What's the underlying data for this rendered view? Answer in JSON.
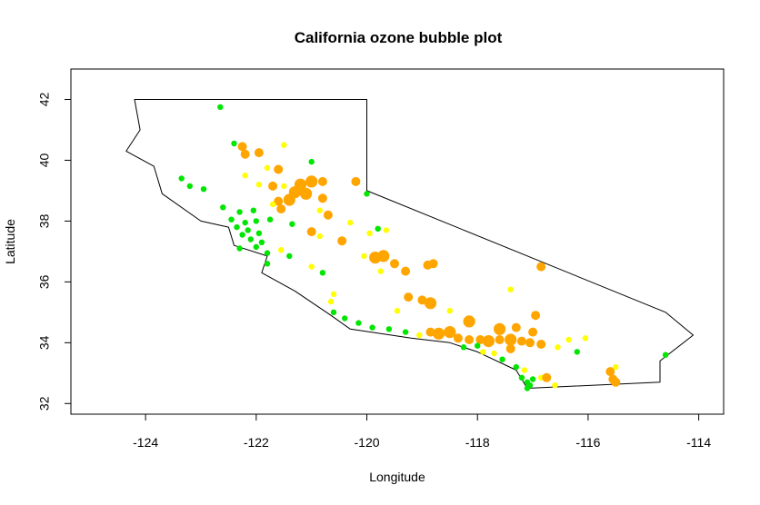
{
  "chart_data": {
    "type": "scatter",
    "title": "California ozone bubble plot",
    "xlabel": "Longitude",
    "ylabel": "Latitude",
    "xlim": [
      -125.35,
      -113.55
    ],
    "ylim": [
      31.65,
      43.0
    ],
    "xticks": [
      -124,
      -122,
      -120,
      -118,
      -116,
      -114
    ],
    "yticks": [
      32,
      34,
      36,
      38,
      40,
      42
    ],
    "grid": false,
    "legend": "none",
    "colors": {
      "low": "#00e600",
      "mid": "#ffff00",
      "high": "#ffa500",
      "map_line": "#000000"
    },
    "state_outline": [
      [
        -124.2,
        42.0
      ],
      [
        -120.0,
        42.0
      ],
      [
        -120.0,
        39.0
      ],
      [
        -114.6,
        35.0
      ],
      [
        -114.1,
        34.25
      ],
      [
        -114.7,
        33.4
      ],
      [
        -114.7,
        32.7
      ],
      [
        -117.1,
        32.5
      ],
      [
        -117.3,
        33.1
      ],
      [
        -118.0,
        33.7
      ],
      [
        -118.5,
        34.0
      ],
      [
        -119.2,
        34.15
      ],
      [
        -120.3,
        34.45
      ],
      [
        -120.65,
        34.9
      ],
      [
        -121.3,
        35.7
      ],
      [
        -121.9,
        36.3
      ],
      [
        -121.8,
        36.85
      ],
      [
        -122.4,
        37.2
      ],
      [
        -122.5,
        37.8
      ],
      [
        -123.0,
        38.0
      ],
      [
        -123.7,
        38.9
      ],
      [
        -123.85,
        39.8
      ],
      [
        -124.35,
        40.3
      ],
      [
        -124.1,
        41.0
      ],
      [
        -124.2,
        42.0
      ]
    ],
    "points": [
      {
        "lon": -122.65,
        "lat": 41.75,
        "level": "low",
        "size": 1
      },
      {
        "lon": -122.4,
        "lat": 40.55,
        "level": "low",
        "size": 1
      },
      {
        "lon": -122.25,
        "lat": 40.45,
        "level": "high",
        "size": 2
      },
      {
        "lon": -122.2,
        "lat": 40.2,
        "level": "high",
        "size": 2
      },
      {
        "lon": -121.95,
        "lat": 40.25,
        "level": "high",
        "size": 2
      },
      {
        "lon": -121.5,
        "lat": 40.5,
        "level": "mid",
        "size": 1
      },
      {
        "lon": -121.0,
        "lat": 39.95,
        "level": "low",
        "size": 1
      },
      {
        "lon": -122.2,
        "lat": 39.5,
        "level": "mid",
        "size": 1
      },
      {
        "lon": -121.8,
        "lat": 39.75,
        "level": "mid",
        "size": 1
      },
      {
        "lon": -121.6,
        "lat": 39.7,
        "level": "high",
        "size": 2
      },
      {
        "lon": -121.95,
        "lat": 39.2,
        "level": "mid",
        "size": 1
      },
      {
        "lon": -121.7,
        "lat": 39.15,
        "level": "high",
        "size": 2
      },
      {
        "lon": -121.5,
        "lat": 39.15,
        "level": "mid",
        "size": 1
      },
      {
        "lon": -123.35,
        "lat": 39.4,
        "level": "low",
        "size": 1
      },
      {
        "lon": -123.2,
        "lat": 39.15,
        "level": "low",
        "size": 1
      },
      {
        "lon": -122.95,
        "lat": 39.05,
        "level": "low",
        "size": 1
      },
      {
        "lon": -121.2,
        "lat": 39.2,
        "level": "high",
        "size": 3
      },
      {
        "lon": -121.0,
        "lat": 39.3,
        "level": "high",
        "size": 3
      },
      {
        "lon": -120.8,
        "lat": 39.3,
        "level": "high",
        "size": 2
      },
      {
        "lon": -121.3,
        "lat": 38.95,
        "level": "high",
        "size": 3
      },
      {
        "lon": -121.1,
        "lat": 38.9,
        "level": "high",
        "size": 3
      },
      {
        "lon": -121.4,
        "lat": 38.7,
        "level": "high",
        "size": 3
      },
      {
        "lon": -121.6,
        "lat": 38.65,
        "level": "high",
        "size": 2
      },
      {
        "lon": -120.8,
        "lat": 38.75,
        "level": "high",
        "size": 2
      },
      {
        "lon": -121.7,
        "lat": 38.55,
        "level": "mid",
        "size": 1
      },
      {
        "lon": -121.55,
        "lat": 38.4,
        "level": "high",
        "size": 2
      },
      {
        "lon": -120.2,
        "lat": 39.3,
        "level": "high",
        "size": 2
      },
      {
        "lon": -120.0,
        "lat": 38.9,
        "level": "low",
        "size": 1
      },
      {
        "lon": -120.7,
        "lat": 38.2,
        "level": "high",
        "size": 2
      },
      {
        "lon": -120.85,
        "lat": 38.35,
        "level": "mid",
        "size": 1
      },
      {
        "lon": -122.6,
        "lat": 38.45,
        "level": "low",
        "size": 1
      },
      {
        "lon": -122.3,
        "lat": 38.3,
        "level": "low",
        "size": 1
      },
      {
        "lon": -122.05,
        "lat": 38.35,
        "level": "low",
        "size": 1
      },
      {
        "lon": -122.45,
        "lat": 38.05,
        "level": "low",
        "size": 1
      },
      {
        "lon": -122.2,
        "lat": 37.95,
        "level": "low",
        "size": 1
      },
      {
        "lon": -122.0,
        "lat": 38.0,
        "level": "low",
        "size": 1
      },
      {
        "lon": -121.75,
        "lat": 38.05,
        "level": "low",
        "size": 1
      },
      {
        "lon": -122.35,
        "lat": 37.8,
        "level": "low",
        "size": 1
      },
      {
        "lon": -122.15,
        "lat": 37.7,
        "level": "low",
        "size": 1
      },
      {
        "lon": -121.95,
        "lat": 37.6,
        "level": "low",
        "size": 1
      },
      {
        "lon": -122.25,
        "lat": 37.55,
        "level": "low",
        "size": 1
      },
      {
        "lon": -122.1,
        "lat": 37.4,
        "level": "low",
        "size": 1
      },
      {
        "lon": -121.9,
        "lat": 37.3,
        "level": "low",
        "size": 1
      },
      {
        "lon": -122.0,
        "lat": 37.15,
        "level": "low",
        "size": 1
      },
      {
        "lon": -122.3,
        "lat": 37.1,
        "level": "low",
        "size": 1
      },
      {
        "lon": -121.8,
        "lat": 36.95,
        "level": "low",
        "size": 1
      },
      {
        "lon": -121.55,
        "lat": 37.05,
        "level": "mid",
        "size": 1
      },
      {
        "lon": -121.4,
        "lat": 36.85,
        "level": "low",
        "size": 1
      },
      {
        "lon": -121.8,
        "lat": 36.6,
        "level": "low",
        "size": 1
      },
      {
        "lon": -121.0,
        "lat": 36.5,
        "level": "mid",
        "size": 1
      },
      {
        "lon": -120.8,
        "lat": 36.3,
        "level": "low",
        "size": 1
      },
      {
        "lon": -121.35,
        "lat": 37.9,
        "level": "low",
        "size": 1
      },
      {
        "lon": -121.0,
        "lat": 37.65,
        "level": "high",
        "size": 2
      },
      {
        "lon": -120.85,
        "lat": 37.5,
        "level": "mid",
        "size": 1
      },
      {
        "lon": -120.45,
        "lat": 37.35,
        "level": "high",
        "size": 2
      },
      {
        "lon": -120.3,
        "lat": 37.95,
        "level": "mid",
        "size": 1
      },
      {
        "lon": -119.8,
        "lat": 37.75,
        "level": "low",
        "size": 1
      },
      {
        "lon": -119.65,
        "lat": 37.7,
        "level": "mid",
        "size": 1
      },
      {
        "lon": -119.95,
        "lat": 37.6,
        "level": "mid",
        "size": 1
      },
      {
        "lon": -120.05,
        "lat": 36.85,
        "level": "mid",
        "size": 1
      },
      {
        "lon": -119.85,
        "lat": 36.8,
        "level": "high",
        "size": 3
      },
      {
        "lon": -119.7,
        "lat": 36.85,
        "level": "high",
        "size": 3
      },
      {
        "lon": -119.5,
        "lat": 36.6,
        "level": "high",
        "size": 2
      },
      {
        "lon": -119.75,
        "lat": 36.35,
        "level": "mid",
        "size": 1
      },
      {
        "lon": -119.3,
        "lat": 36.35,
        "level": "high",
        "size": 2
      },
      {
        "lon": -118.9,
        "lat": 36.55,
        "level": "high",
        "size": 2
      },
      {
        "lon": -118.8,
        "lat": 36.6,
        "level": "high",
        "size": 2
      },
      {
        "lon": -116.85,
        "lat": 36.5,
        "level": "high",
        "size": 2
      },
      {
        "lon": -120.6,
        "lat": 35.6,
        "level": "mid",
        "size": 1
      },
      {
        "lon": -120.65,
        "lat": 35.35,
        "level": "mid",
        "size": 1
      },
      {
        "lon": -119.25,
        "lat": 35.5,
        "level": "high",
        "size": 2
      },
      {
        "lon": -119.0,
        "lat": 35.4,
        "level": "high",
        "size": 2
      },
      {
        "lon": -118.85,
        "lat": 35.3,
        "level": "high",
        "size": 3
      },
      {
        "lon": -119.45,
        "lat": 35.05,
        "level": "mid",
        "size": 1
      },
      {
        "lon": -118.5,
        "lat": 35.05,
        "level": "mid",
        "size": 1
      },
      {
        "lon": -118.15,
        "lat": 34.7,
        "level": "high",
        "size": 3
      },
      {
        "lon": -117.4,
        "lat": 35.75,
        "level": "mid",
        "size": 1
      },
      {
        "lon": -116.95,
        "lat": 34.9,
        "level": "high",
        "size": 2
      },
      {
        "lon": -120.6,
        "lat": 35.0,
        "level": "low",
        "size": 1
      },
      {
        "lon": -120.4,
        "lat": 34.8,
        "level": "low",
        "size": 1
      },
      {
        "lon": -120.15,
        "lat": 34.65,
        "level": "low",
        "size": 1
      },
      {
        "lon": -119.9,
        "lat": 34.5,
        "level": "low",
        "size": 1
      },
      {
        "lon": -119.6,
        "lat": 34.45,
        "level": "low",
        "size": 1
      },
      {
        "lon": -119.3,
        "lat": 34.35,
        "level": "low",
        "size": 1
      },
      {
        "lon": -119.05,
        "lat": 34.25,
        "level": "mid",
        "size": 1
      },
      {
        "lon": -118.85,
        "lat": 34.35,
        "level": "high",
        "size": 2
      },
      {
        "lon": -118.7,
        "lat": 34.3,
        "level": "high",
        "size": 3
      },
      {
        "lon": -118.5,
        "lat": 34.35,
        "level": "high",
        "size": 3
      },
      {
        "lon": -118.35,
        "lat": 34.15,
        "level": "high",
        "size": 2
      },
      {
        "lon": -118.15,
        "lat": 34.1,
        "level": "high",
        "size": 2
      },
      {
        "lon": -117.95,
        "lat": 34.1,
        "level": "high",
        "size": 2
      },
      {
        "lon": -117.8,
        "lat": 34.05,
        "level": "high",
        "size": 3
      },
      {
        "lon": -117.6,
        "lat": 34.1,
        "level": "high",
        "size": 2
      },
      {
        "lon": -117.4,
        "lat": 34.1,
        "level": "high",
        "size": 3
      },
      {
        "lon": -117.2,
        "lat": 34.05,
        "level": "high",
        "size": 2
      },
      {
        "lon": -117.05,
        "lat": 34.0,
        "level": "high",
        "size": 2
      },
      {
        "lon": -117.4,
        "lat": 33.8,
        "level": "high",
        "size": 2
      },
      {
        "lon": -117.6,
        "lat": 34.45,
        "level": "high",
        "size": 3
      },
      {
        "lon": -117.3,
        "lat": 34.5,
        "level": "high",
        "size": 2
      },
      {
        "lon": -117.0,
        "lat": 34.35,
        "level": "high",
        "size": 2
      },
      {
        "lon": -116.85,
        "lat": 33.95,
        "level": "high",
        "size": 2
      },
      {
        "lon": -116.55,
        "lat": 33.85,
        "level": "mid",
        "size": 1
      },
      {
        "lon": -116.35,
        "lat": 34.1,
        "level": "mid",
        "size": 1
      },
      {
        "lon": -116.05,
        "lat": 34.15,
        "level": "mid",
        "size": 1
      },
      {
        "lon": -116.2,
        "lat": 33.7,
        "level": "low",
        "size": 1
      },
      {
        "lon": -118.25,
        "lat": 33.85,
        "level": "low",
        "size": 1
      },
      {
        "lon": -118.0,
        "lat": 33.9,
        "level": "low",
        "size": 1
      },
      {
        "lon": -117.9,
        "lat": 33.7,
        "level": "mid",
        "size": 1
      },
      {
        "lon": -117.7,
        "lat": 33.65,
        "level": "mid",
        "size": 1
      },
      {
        "lon": -117.55,
        "lat": 33.45,
        "level": "low",
        "size": 1
      },
      {
        "lon": -117.3,
        "lat": 33.2,
        "level": "low",
        "size": 1
      },
      {
        "lon": -117.15,
        "lat": 33.1,
        "level": "mid",
        "size": 1
      },
      {
        "lon": -117.2,
        "lat": 32.85,
        "level": "low",
        "size": 1
      },
      {
        "lon": -117.1,
        "lat": 32.7,
        "level": "low",
        "size": 1
      },
      {
        "lon": -117.0,
        "lat": 32.8,
        "level": "low",
        "size": 1
      },
      {
        "lon": -116.85,
        "lat": 32.85,
        "level": "mid",
        "size": 1
      },
      {
        "lon": -116.75,
        "lat": 32.85,
        "level": "high",
        "size": 2
      },
      {
        "lon": -116.6,
        "lat": 32.6,
        "level": "mid",
        "size": 1
      },
      {
        "lon": -117.05,
        "lat": 32.6,
        "level": "low",
        "size": 1
      },
      {
        "lon": -117.1,
        "lat": 32.5,
        "level": "low",
        "size": 1
      },
      {
        "lon": -115.6,
        "lat": 33.05,
        "level": "high",
        "size": 2
      },
      {
        "lon": -115.55,
        "lat": 32.8,
        "level": "high",
        "size": 2
      },
      {
        "lon": -115.5,
        "lat": 32.7,
        "level": "high",
        "size": 2
      },
      {
        "lon": -115.5,
        "lat": 33.2,
        "level": "mid",
        "size": 1
      },
      {
        "lon": -114.6,
        "lat": 33.6,
        "level": "low",
        "size": 1
      }
    ]
  }
}
